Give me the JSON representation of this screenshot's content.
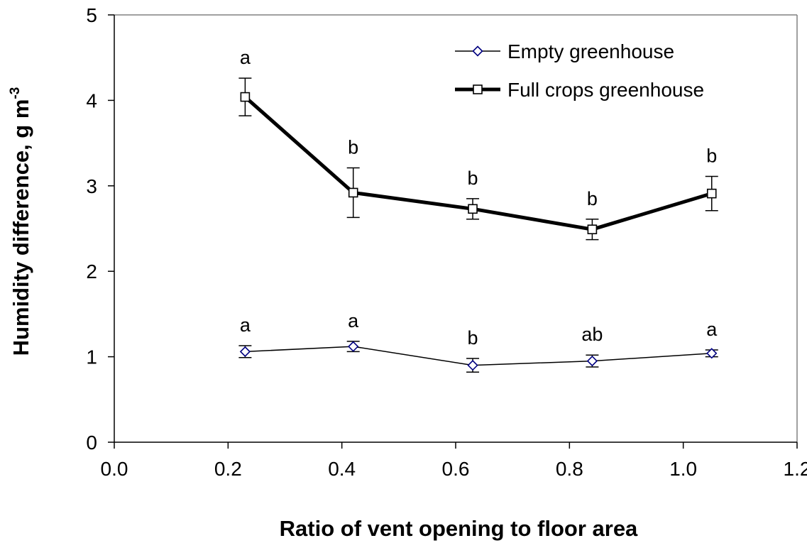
{
  "chart_data": {
    "type": "line",
    "title": "",
    "xlabel": "Ratio of vent opening to floor area",
    "ylabel": "Humidity difference, g m",
    "ylabel_superscript": "-3",
    "xlim": [
      0.0,
      1.2
    ],
    "ylim": [
      0,
      5
    ],
    "xticks": [
      "0.0",
      "0.2",
      "0.4",
      "0.6",
      "0.8",
      "1.0",
      "1.2"
    ],
    "yticks": [
      "0",
      "1",
      "2",
      "3",
      "4",
      "5"
    ],
    "grid": false,
    "legend_position": "top-right",
    "x": [
      0.23,
      0.42,
      0.63,
      0.84,
      1.05
    ],
    "series": [
      {
        "name": "Empty greenhouse",
        "marker": "diamond",
        "color": "#000080",
        "line_color": "#000000",
        "line_style": "thin",
        "values": [
          1.06,
          1.12,
          0.9,
          0.95,
          1.04
        ],
        "error": [
          0.07,
          0.06,
          0.08,
          0.07,
          0.04
        ],
        "significance": [
          "a",
          "a",
          "b",
          "ab",
          "a"
        ]
      },
      {
        "name": "Full crops greenhouse",
        "marker": "square",
        "color": "#000000",
        "line_color": "#000000",
        "line_style": "thick",
        "values": [
          4.04,
          2.92,
          2.73,
          2.49,
          2.91
        ],
        "error": [
          0.22,
          0.29,
          0.12,
          0.12,
          0.2
        ],
        "significance": [
          "a",
          "b",
          "b",
          "b",
          "b"
        ]
      }
    ]
  }
}
